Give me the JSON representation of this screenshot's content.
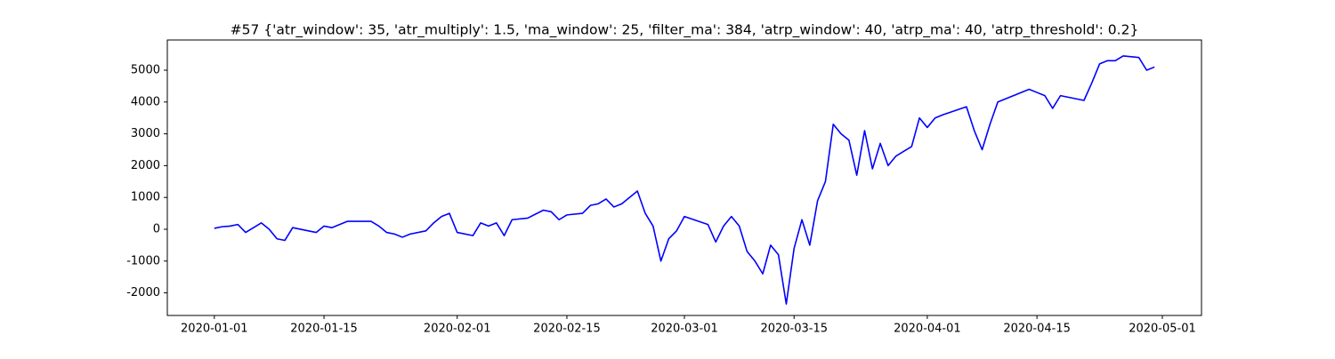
{
  "chart_data": {
    "type": "line",
    "title": "#57 {'atr_window': 35, 'atr_multiply': 1.5, 'ma_window': 25, 'filter_ma': 384, 'atrp_window': 40, 'atrp_ma': 40, 'atrp_threshold': 0.2}",
    "x": [
      "2020-01-01",
      "2020-01-02",
      "2020-01-03",
      "2020-01-04",
      "2020-01-05",
      "2020-01-06",
      "2020-01-07",
      "2020-01-08",
      "2020-01-09",
      "2020-01-10",
      "2020-01-11",
      "2020-01-13",
      "2020-01-14",
      "2020-01-15",
      "2020-01-16",
      "2020-01-17",
      "2020-01-18",
      "2020-01-21",
      "2020-01-22",
      "2020-01-23",
      "2020-01-24",
      "2020-01-25",
      "2020-01-26",
      "2020-01-28",
      "2020-01-29",
      "2020-01-30",
      "2020-01-31",
      "2020-02-01",
      "2020-02-03",
      "2020-02-04",
      "2020-02-05",
      "2020-02-06",
      "2020-02-07",
      "2020-02-08",
      "2020-02-10",
      "2020-02-12",
      "2020-02-13",
      "2020-02-14",
      "2020-02-15",
      "2020-02-17",
      "2020-02-18",
      "2020-02-19",
      "2020-02-20",
      "2020-02-21",
      "2020-02-22",
      "2020-02-24",
      "2020-02-25",
      "2020-02-26",
      "2020-02-27",
      "2020-02-28",
      "2020-02-29",
      "2020-03-01",
      "2020-03-04",
      "2020-03-05",
      "2020-03-06",
      "2020-03-07",
      "2020-03-08",
      "2020-03-09",
      "2020-03-10",
      "2020-03-11",
      "2020-03-12",
      "2020-03-13",
      "2020-03-14",
      "2020-03-15",
      "2020-03-16",
      "2020-03-17",
      "2020-03-18",
      "2020-03-19",
      "2020-03-20",
      "2020-03-21",
      "2020-03-22",
      "2020-03-23",
      "2020-03-24",
      "2020-03-25",
      "2020-03-26",
      "2020-03-27",
      "2020-03-28",
      "2020-03-30",
      "2020-03-31",
      "2020-04-01",
      "2020-04-02",
      "2020-04-03",
      "2020-04-06",
      "2020-04-07",
      "2020-04-08",
      "2020-04-09",
      "2020-04-10",
      "2020-04-14",
      "2020-04-15",
      "2020-04-16",
      "2020-04-17",
      "2020-04-18",
      "2020-04-21",
      "2020-04-22",
      "2020-04-23",
      "2020-04-24",
      "2020-04-25",
      "2020-04-26",
      "2020-04-28",
      "2020-04-29",
      "2020-04-30"
    ],
    "series": [
      {
        "color": "#0000ff",
        "values": [
          30,
          80,
          100,
          150,
          -100,
          50,
          200,
          0,
          -300,
          -350,
          50,
          -50,
          -100,
          100,
          50,
          150,
          250,
          250,
          100,
          -100,
          -150,
          -250,
          -150,
          -50,
          200,
          400,
          500,
          -100,
          -200,
          200,
          100,
          200,
          -200,
          300,
          350,
          600,
          550,
          300,
          450,
          500,
          750,
          800,
          950,
          700,
          800,
          1200,
          500,
          100,
          -1000,
          -300,
          -50,
          400,
          150,
          -400,
          100,
          400,
          100,
          -700,
          -1000,
          -1400,
          -500,
          -800,
          -2350,
          -600,
          300,
          -500,
          900,
          1500,
          3300,
          3000,
          2800,
          1700,
          3100,
          1900,
          2700,
          2000,
          2300,
          2600,
          3500,
          3200,
          3500,
          3600,
          3850,
          3100,
          2500,
          3300,
          4000,
          4400,
          4300,
          4200,
          3800,
          4200,
          4050,
          4600,
          5200,
          5300,
          5300,
          5450,
          5400,
          5000,
          5100
        ]
      }
    ],
    "xlim": [
      "2019-12-26",
      "2020-05-06"
    ],
    "xticks": [
      "2020-01-01",
      "2020-01-15",
      "2020-02-01",
      "2020-02-15",
      "2020-03-01",
      "2020-03-15",
      "2020-04-01",
      "2020-04-15",
      "2020-05-01"
    ],
    "ylim": [
      -2710,
      5950
    ],
    "yticks": [
      -2000,
      -1000,
      0,
      1000,
      2000,
      3000,
      4000,
      5000
    ],
    "grid": false
  }
}
